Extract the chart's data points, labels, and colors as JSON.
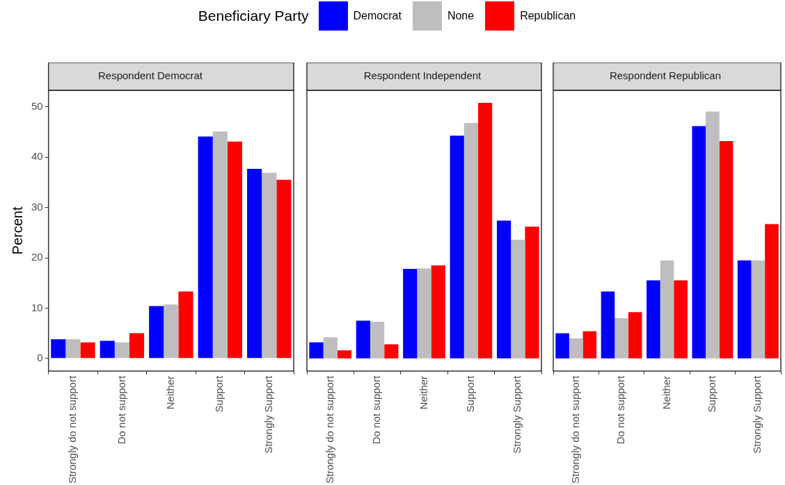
{
  "chart_data": [
    {
      "type": "bar",
      "title": "Respondent Democrat",
      "ylabel": "Percent",
      "legend": "top",
      "legend_title": "Beneficiary Party",
      "categories": [
        "Strongly do not support",
        "Do not support",
        "Neither",
        "Support",
        "Strongly Support"
      ],
      "ylim": [
        -2.5,
        53.3
      ],
      "yticks": [
        0,
        10,
        20,
        30,
        40,
        50
      ],
      "series": [
        {
          "name": "Democrat",
          "color": "#0000ff",
          "values": [
            3.8,
            3.5,
            10.4,
            44.1,
            37.7
          ]
        },
        {
          "name": "None",
          "color": "#bebebe",
          "values": [
            3.8,
            3.2,
            10.7,
            45.1,
            36.9
          ]
        },
        {
          "name": "Republican",
          "color": "#ff0000",
          "values": [
            3.2,
            5.0,
            13.3,
            43.1,
            35.5
          ]
        }
      ]
    },
    {
      "type": "bar",
      "title": "Respondent Independent",
      "tick_labels": "x",
      "categories": [
        "Strongly do not support",
        "Do not support",
        "Neither",
        "Support",
        "Strongly Support"
      ],
      "ylim": [
        -2.5,
        53.3
      ],
      "series": [
        {
          "color": "#0000ff",
          "values": [
            3.2,
            7.5,
            17.8,
            44.3,
            27.4
          ]
        },
        {
          "color": "#bebebe",
          "values": [
            4.2,
            7.3,
            17.9,
            46.8,
            23.6
          ]
        },
        {
          "color": "#ff0000",
          "values": [
            1.6,
            2.8,
            18.5,
            50.8,
            26.2
          ]
        }
      ]
    },
    {
      "type": "bar",
      "title": "Respondent Republican",
      "tick_labels": "x",
      "categories": [
        "Strongly do not support",
        "Do not support",
        "Neither",
        "Support",
        "Strongly Support"
      ],
      "ylim": [
        -2.5,
        53.3
      ],
      "series": [
        {
          "color": "#0000ff",
          "values": [
            5.0,
            13.3,
            15.5,
            46.2,
            19.5
          ]
        },
        {
          "color": "#bebebe",
          "values": [
            4.0,
            8.0,
            19.5,
            49.1,
            19.5
          ]
        },
        {
          "color": "#ff0000",
          "values": [
            5.4,
            9.2,
            15.5,
            43.2,
            26.7
          ]
        }
      ]
    }
  ]
}
